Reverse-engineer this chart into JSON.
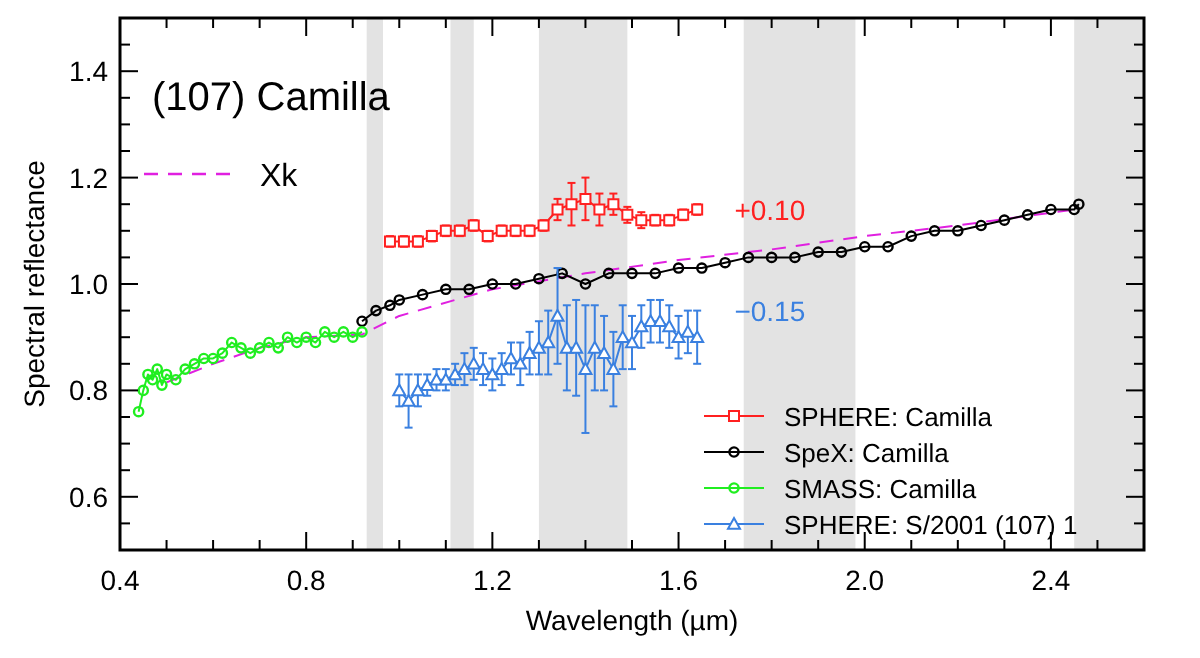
{
  "chart_data": {
    "type": "line",
    "title": "(107) Camilla",
    "xlabel": "Wavelength (µm)",
    "ylabel": "Spectral reflectance",
    "xlim": [
      0.4,
      2.6
    ],
    "ylim": [
      0.5,
      1.5
    ],
    "xticks": [
      0.4,
      {
        "value": 0.5,
        "label": null
      },
      {
        "value": 0.6,
        "label": null
      },
      {
        "value": 0.7,
        "label": null
      },
      0.8,
      {
        "value": 0.9,
        "label": null
      },
      {
        "value": 1,
        "label": null
      },
      {
        "value": 1.1,
        "label": null
      },
      1.2,
      {
        "value": 1.3,
        "label": null
      },
      {
        "value": 1.4,
        "label": null
      },
      {
        "value": 1.5,
        "label": null
      },
      1.6,
      {
        "value": 1.7,
        "label": null
      },
      {
        "value": 1.8,
        "label": null
      },
      {
        "value": 1.9,
        "label": null
      },
      {
        "value": 2,
        "label": "2.0"
      },
      {
        "value": 2.1,
        "label": null
      },
      {
        "value": 2.2,
        "label": null
      },
      {
        "value": 2.3,
        "label": null
      },
      2.4,
      {
        "value": 2.5,
        "label": null
      }
    ],
    "yticks": [
      {
        "value": 0.55,
        "label": null
      },
      0.6,
      {
        "value": 0.65,
        "label": null
      },
      {
        "value": 0.7,
        "label": null
      },
      {
        "value": 0.75,
        "label": null
      },
      0.8,
      {
        "value": 0.85,
        "label": null
      },
      {
        "value": 0.9,
        "label": null
      },
      {
        "value": 0.95,
        "label": null
      },
      {
        "value": 1,
        "label": "1.0"
      },
      {
        "value": 1.05,
        "label": null
      },
      {
        "value": 1.1,
        "label": null
      },
      {
        "value": 1.15,
        "label": null
      },
      1.2,
      {
        "value": 1.25,
        "label": null
      },
      {
        "value": 1.3,
        "label": null
      },
      {
        "value": 1.35,
        "label": null
      },
      1.4,
      {
        "value": 1.45,
        "label": null
      }
    ],
    "legend": "bottom right",
    "bands": [
      {
        "axis": "x",
        "from": 0.93,
        "to": 0.965,
        "color": "#e3e3e3"
      },
      {
        "axis": "x",
        "from": 1.11,
        "to": 1.16,
        "color": "#e3e3e3"
      },
      {
        "axis": "x",
        "from": 1.3,
        "to": 1.49,
        "color": "#e3e3e3"
      },
      {
        "axis": "x",
        "from": 1.74,
        "to": 1.98,
        "color": "#e3e3e3"
      },
      {
        "axis": "x",
        "from": 2.45,
        "to": 2.6,
        "color": "#e3e3e3"
      }
    ],
    "annotations": [
      {
        "text": "+0.10",
        "x": 1.72,
        "y": 1.14
      },
      {
        "text": "−0.15",
        "x": 1.72,
        "y": 0.95
      }
    ],
    "series": [
      {
        "name": "Xk",
        "color": "#e020e0",
        "line_style": "dashed",
        "marker": "none",
        "x": [
          0.5,
          0.6,
          0.7,
          0.8,
          0.92,
          1.0,
          1.2,
          1.4,
          1.6,
          1.8,
          2.0,
          2.2,
          2.45
        ],
        "values": [
          0.815,
          0.85,
          0.88,
          0.9,
          0.905,
          0.94,
          0.99,
          1.02,
          1.045,
          1.065,
          1.09,
          1.11,
          1.14
        ]
      },
      {
        "name": "SPHERE: Camilla",
        "color": "#ff2020",
        "marker": "square",
        "x": [
          0.98,
          1.01,
          1.04,
          1.07,
          1.1,
          1.13,
          1.16,
          1.19,
          1.22,
          1.25,
          1.28,
          1.31,
          1.34,
          1.37,
          1.4,
          1.43,
          1.46,
          1.49,
          1.52,
          1.55,
          1.58,
          1.61,
          1.64
        ],
        "values": [
          1.08,
          1.08,
          1.08,
          1.09,
          1.1,
          1.1,
          1.11,
          1.09,
          1.1,
          1.1,
          1.1,
          1.11,
          1.14,
          1.15,
          1.16,
          1.14,
          1.15,
          1.13,
          1.12,
          1.12,
          1.12,
          1.13,
          1.14
        ],
        "errors": [
          0.01,
          0.01,
          0.01,
          0.01,
          0.01,
          0.01,
          0.01,
          0.01,
          0.01,
          0.01,
          0.01,
          0.01,
          0.02,
          0.04,
          0.04,
          0.03,
          0.02,
          0.015,
          0.015,
          0.01,
          0.01,
          0.01,
          0.01
        ]
      },
      {
        "name": "SpeX: Camilla",
        "color": "#000000",
        "marker": "circle",
        "x": [
          0.92,
          0.95,
          0.98,
          1.0,
          1.05,
          1.1,
          1.15,
          1.2,
          1.25,
          1.3,
          1.35,
          1.4,
          1.45,
          1.5,
          1.55,
          1.6,
          1.65,
          1.7,
          1.75,
          1.8,
          1.85,
          1.9,
          1.95,
          2.0,
          2.05,
          2.1,
          2.15,
          2.2,
          2.25,
          2.3,
          2.35,
          2.4,
          2.45,
          2.46
        ],
        "values": [
          0.93,
          0.95,
          0.96,
          0.97,
          0.98,
          0.99,
          0.99,
          1.0,
          1.0,
          1.01,
          1.02,
          1.0,
          1.02,
          1.02,
          1.02,
          1.03,
          1.03,
          1.04,
          1.05,
          1.05,
          1.05,
          1.06,
          1.06,
          1.07,
          1.07,
          1.09,
          1.1,
          1.1,
          1.11,
          1.12,
          1.13,
          1.14,
          1.14,
          1.15
        ]
      },
      {
        "name": "SMASS: Camilla",
        "color": "#20ee20",
        "marker": "circle",
        "x": [
          0.44,
          0.45,
          0.46,
          0.47,
          0.48,
          0.49,
          0.5,
          0.52,
          0.54,
          0.56,
          0.58,
          0.6,
          0.62,
          0.64,
          0.66,
          0.68,
          0.7,
          0.72,
          0.74,
          0.76,
          0.78,
          0.8,
          0.82,
          0.84,
          0.86,
          0.88,
          0.9,
          0.92
        ],
        "values": [
          0.76,
          0.8,
          0.83,
          0.82,
          0.84,
          0.81,
          0.83,
          0.82,
          0.84,
          0.85,
          0.86,
          0.86,
          0.87,
          0.89,
          0.88,
          0.87,
          0.88,
          0.89,
          0.88,
          0.9,
          0.89,
          0.9,
          0.89,
          0.91,
          0.9,
          0.91,
          0.9,
          0.91
        ]
      },
      {
        "name": "SPHERE: S/2001 (107) 1",
        "color": "#3a80e0",
        "marker": "triangle",
        "x": [
          1.0,
          1.02,
          1.04,
          1.06,
          1.08,
          1.1,
          1.12,
          1.14,
          1.16,
          1.18,
          1.2,
          1.22,
          1.24,
          1.26,
          1.28,
          1.3,
          1.32,
          1.34,
          1.36,
          1.38,
          1.4,
          1.42,
          1.44,
          1.46,
          1.48,
          1.5,
          1.52,
          1.54,
          1.56,
          1.58,
          1.6,
          1.62,
          1.64
        ],
        "values": [
          0.8,
          0.78,
          0.8,
          0.81,
          0.82,
          0.82,
          0.83,
          0.84,
          0.85,
          0.84,
          0.83,
          0.84,
          0.86,
          0.85,
          0.87,
          0.88,
          0.89,
          0.94,
          0.88,
          0.88,
          0.84,
          0.88,
          0.87,
          0.84,
          0.9,
          0.89,
          0.92,
          0.93,
          0.93,
          0.92,
          0.9,
          0.91,
          0.9
        ],
        "errors": [
          0.03,
          0.05,
          0.03,
          0.02,
          0.02,
          0.02,
          0.02,
          0.03,
          0.03,
          0.03,
          0.03,
          0.03,
          0.03,
          0.04,
          0.04,
          0.05,
          0.06,
          0.09,
          0.08,
          0.09,
          0.12,
          0.08,
          0.07,
          0.07,
          0.06,
          0.05,
          0.04,
          0.04,
          0.04,
          0.04,
          0.04,
          0.04,
          0.05
        ]
      }
    ]
  }
}
